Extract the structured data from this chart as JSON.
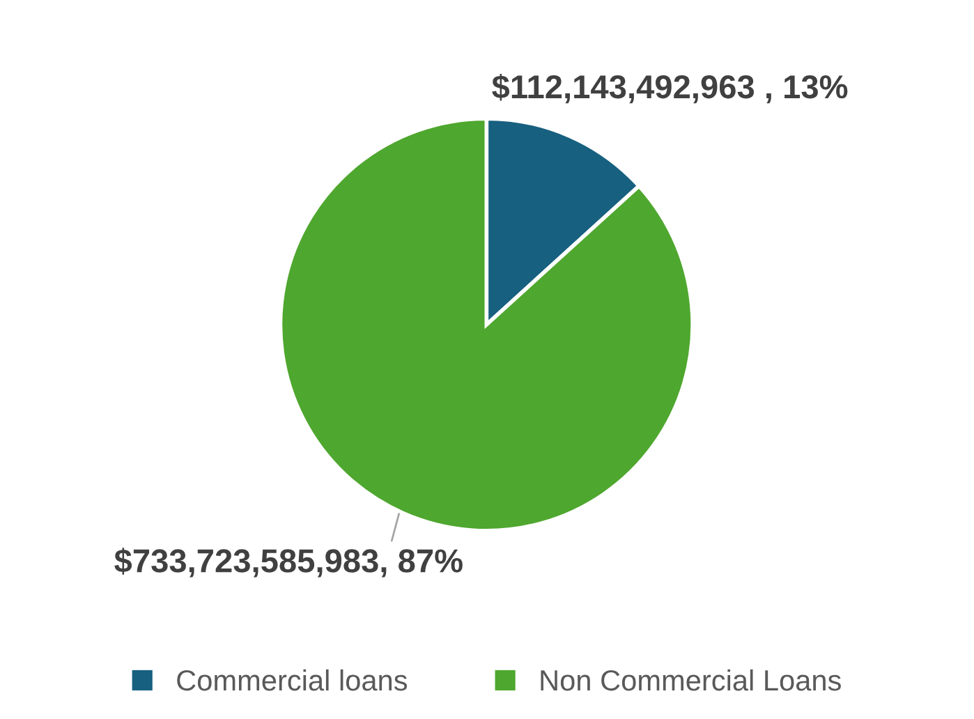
{
  "chart_data": {
    "type": "pie",
    "categories": [
      "Commercial loans",
      "Non Commercial Loans"
    ],
    "values": [
      112143492963,
      733723585983
    ],
    "colors": [
      "#17607f",
      "#4ea72e"
    ],
    "value_labels": [
      "$112,143,492,963 , 13%",
      "$733,723,585,983, 87%"
    ],
    "legend": "bottom"
  }
}
